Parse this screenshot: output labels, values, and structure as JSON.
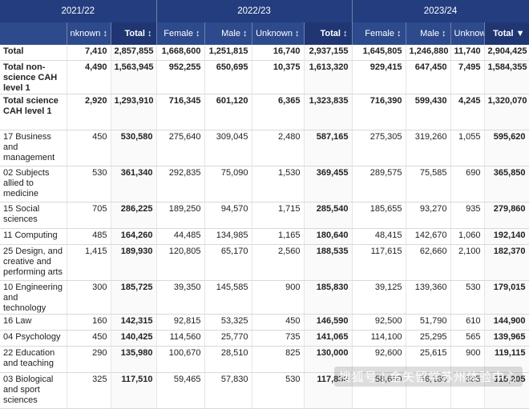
{
  "years": [
    "2021/22",
    "2022/23",
    "2023/24"
  ],
  "headers": {
    "unknown_cut": "nknown ↕",
    "total": "Total ↕",
    "female": "Female ↕",
    "male": "Male ↕",
    "unknown": "Unknown ↕",
    "total_sorted": "Total ▼"
  },
  "rows": [
    {
      "label": "Total",
      "cells": [
        "7,410",
        "2,857,855",
        "1,668,600",
        "1,251,815",
        "16,740",
        "2,937,155",
        "1,645,805",
        "1,246,880",
        "11,740",
        "2,904,425"
      ]
    },
    {
      "label": "Total non-science CAH level 1",
      "cells": [
        "4,490",
        "1,563,945",
        "952,255",
        "650,695",
        "10,375",
        "1,613,320",
        "929,415",
        "647,450",
        "7,495",
        "1,584,355"
      ]
    },
    {
      "label": "Total science CAH level 1",
      "cells": [
        "2,920",
        "1,293,910",
        "716,345",
        "601,120",
        "6,365",
        "1,323,835",
        "716,390",
        "599,430",
        "4,245",
        "1,320,070"
      ]
    },
    {
      "label": "17 Business and management",
      "cells": [
        "450",
        "530,580",
        "275,640",
        "309,045",
        "2,480",
        "587,165",
        "275,305",
        "319,260",
        "1,055",
        "595,620"
      ]
    },
    {
      "label": "02 Subjects allied to medicine",
      "cells": [
        "530",
        "361,340",
        "292,835",
        "75,090",
        "1,530",
        "369,455",
        "289,575",
        "75,585",
        "690",
        "365,850"
      ]
    },
    {
      "label": "15 Social sciences",
      "cells": [
        "705",
        "286,225",
        "189,250",
        "94,570",
        "1,715",
        "285,540",
        "185,655",
        "93,270",
        "935",
        "279,860"
      ]
    },
    {
      "label": "11 Computing",
      "cells": [
        "485",
        "164,260",
        "44,485",
        "134,985",
        "1,165",
        "180,640",
        "48,415",
        "142,670",
        "1,060",
        "192,140"
      ]
    },
    {
      "label": "25 Design, and creative and performing arts",
      "cells": [
        "1,415",
        "189,930",
        "120,805",
        "65,170",
        "2,560",
        "188,535",
        "117,615",
        "62,660",
        "2,100",
        "182,370"
      ]
    },
    {
      "label": "10 Engineering and technology",
      "cells": [
        "300",
        "185,725",
        "39,350",
        "145,585",
        "900",
        "185,830",
        "39,125",
        "139,360",
        "530",
        "179,015"
      ]
    },
    {
      "label": "16 Law",
      "cells": [
        "160",
        "142,315",
        "92,815",
        "53,325",
        "450",
        "146,590",
        "92,500",
        "51,790",
        "610",
        "144,900"
      ]
    },
    {
      "label": "04 Psychology",
      "cells": [
        "450",
        "140,425",
        "114,560",
        "25,770",
        "735",
        "141,065",
        "114,100",
        "25,295",
        "565",
        "139,965"
      ]
    },
    {
      "label": "22 Education and teaching",
      "cells": [
        "290",
        "135,980",
        "100,670",
        "28,510",
        "825",
        "130,000",
        "92,600",
        "25,615",
        "900",
        "119,115"
      ]
    },
    {
      "label": "03 Biological and sport sciences",
      "cells": [
        "325",
        "117,510",
        "59,465",
        "57,830",
        "530",
        "117,830",
        "58,660",
        "56,160",
        "385",
        "115,205"
      ]
    }
  ],
  "watermark": "搜狐号 | 金矢留学苏州体验中心"
}
